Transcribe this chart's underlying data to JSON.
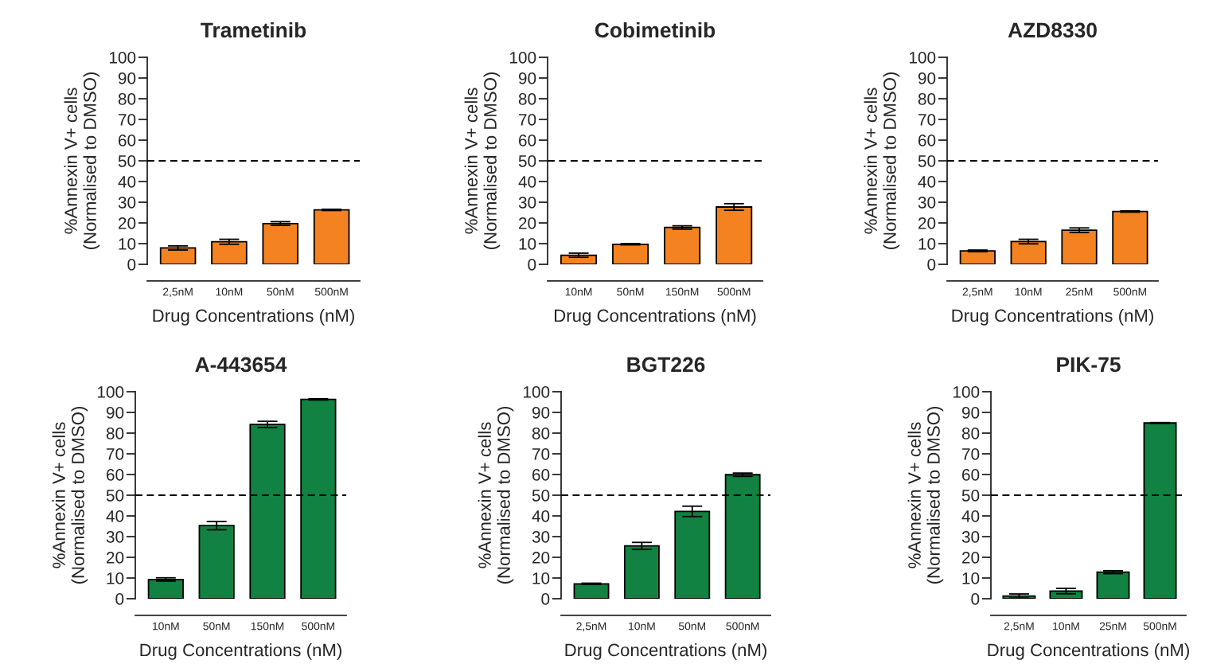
{
  "chart_data": [
    {
      "type": "bar",
      "title": "Trametinib",
      "xlabel": "Drug Concentrations (nM)",
      "ylabel": "%Annexin V+ cells\n(Normalised to DMSO)",
      "categories": [
        "2,5nM",
        "10nM",
        "50nM",
        "500nM"
      ],
      "values": [
        7.9,
        10.9,
        19.7,
        26.3
      ],
      "errors": [
        1,
        1.2,
        0.9,
        0.3
      ],
      "color": "#f58220",
      "ylim": [
        0,
        100
      ],
      "yticks": [
        0,
        10,
        20,
        30,
        40,
        50,
        60,
        70,
        80,
        90,
        100
      ],
      "ref_lines": [
        {
          "axis": "y",
          "value": 50,
          "line_style": "dashed",
          "color": "#000000"
        }
      ],
      "grid": false,
      "legend": false
    },
    {
      "type": "bar",
      "title": "Cobimetinib",
      "xlabel": "Drug Concentrations (nM)",
      "ylabel": "%Annexin V+ cells\n(Normalised to DMSO)",
      "categories": [
        "10nM",
        "50nM",
        "150nM",
        "500nM"
      ],
      "values": [
        4.4,
        9.7,
        17.8,
        27.7
      ],
      "errors": [
        1,
        0.3,
        0.8,
        1.6
      ],
      "color": "#f58220",
      "ylim": [
        0,
        100
      ],
      "yticks": [
        0,
        10,
        20,
        30,
        40,
        50,
        60,
        70,
        80,
        90,
        100
      ],
      "ref_lines": [
        {
          "axis": "y",
          "value": 50,
          "line_style": "dashed",
          "color": "#000000"
        }
      ],
      "grid": false,
      "legend": false
    },
    {
      "type": "bar",
      "title": "AZD8330",
      "xlabel": "Drug Concentrations (nM)",
      "ylabel": "%Annexin V+ cells\n(Normalised to DMSO)",
      "categories": [
        "2,5nM",
        "10nM",
        "25nM",
        "500nM"
      ],
      "values": [
        6.5,
        11.0,
        16.5,
        25.5
      ],
      "errors": [
        0.4,
        1.1,
        1.1,
        0.3
      ],
      "color": "#f58220",
      "ylim": [
        0,
        100
      ],
      "yticks": [
        0,
        10,
        20,
        30,
        40,
        50,
        60,
        70,
        80,
        90,
        100
      ],
      "ref_lines": [
        {
          "axis": "y",
          "value": 50,
          "line_style": "dashed",
          "color": "#000000"
        }
      ],
      "grid": false,
      "legend": false
    },
    {
      "type": "bar",
      "title": "A-443654",
      "xlabel": "Drug Concentrations (nM)",
      "ylabel": "%Annexin V+ cells\n(Normalised to DMSO)",
      "categories": [
        "10nM",
        "50nM",
        "150nM",
        "500nM"
      ],
      "values": [
        9.3,
        35.3,
        84.2,
        96.3
      ],
      "errors": [
        0.8,
        2,
        1.5,
        0.3
      ],
      "color": "#118241",
      "ylim": [
        0,
        100
      ],
      "yticks": [
        0,
        10,
        20,
        30,
        40,
        50,
        60,
        70,
        80,
        90,
        100
      ],
      "ref_lines": [
        {
          "axis": "y",
          "value": 50,
          "line_style": "dashed",
          "color": "#000000"
        }
      ],
      "grid": false,
      "legend": false
    },
    {
      "type": "bar",
      "title": "BGT226",
      "xlabel": "Drug Concentrations (nM)",
      "ylabel": "%Annexin V+ cells\n(Normalised to DMSO)",
      "categories": [
        "2,5nM",
        "10nM",
        "50nM",
        "500nM"
      ],
      "values": [
        7.2,
        25.5,
        42.2,
        59.9
      ],
      "errors": [
        0.3,
        1.7,
        2.5,
        0.8
      ],
      "color": "#118241",
      "ylim": [
        0,
        100
      ],
      "yticks": [
        0,
        10,
        20,
        30,
        40,
        50,
        60,
        70,
        80,
        90,
        100
      ],
      "ref_lines": [
        {
          "axis": "y",
          "value": 50,
          "line_style": "dashed",
          "color": "#000000"
        }
      ],
      "grid": false,
      "legend": false
    },
    {
      "type": "bar",
      "title": "PIK-75",
      "xlabel": "Drug Concentrations (nM)",
      "ylabel": "%Annexin V+ cells\n(Normalised to DMSO)",
      "categories": [
        "2,5nM",
        "10nM",
        "25nM",
        "500nM"
      ],
      "values": [
        1.3,
        3.7,
        12.8,
        84.9
      ],
      "errors": [
        1,
        1.3,
        0.7,
        0.2
      ],
      "color": "#118241",
      "ylim": [
        0,
        100
      ],
      "yticks": [
        0,
        10,
        20,
        30,
        40,
        50,
        60,
        70,
        80,
        90,
        100
      ],
      "ref_lines": [
        {
          "axis": "y",
          "value": 50,
          "line_style": "dashed",
          "color": "#000000"
        }
      ],
      "grid": false,
      "legend": false
    }
  ]
}
